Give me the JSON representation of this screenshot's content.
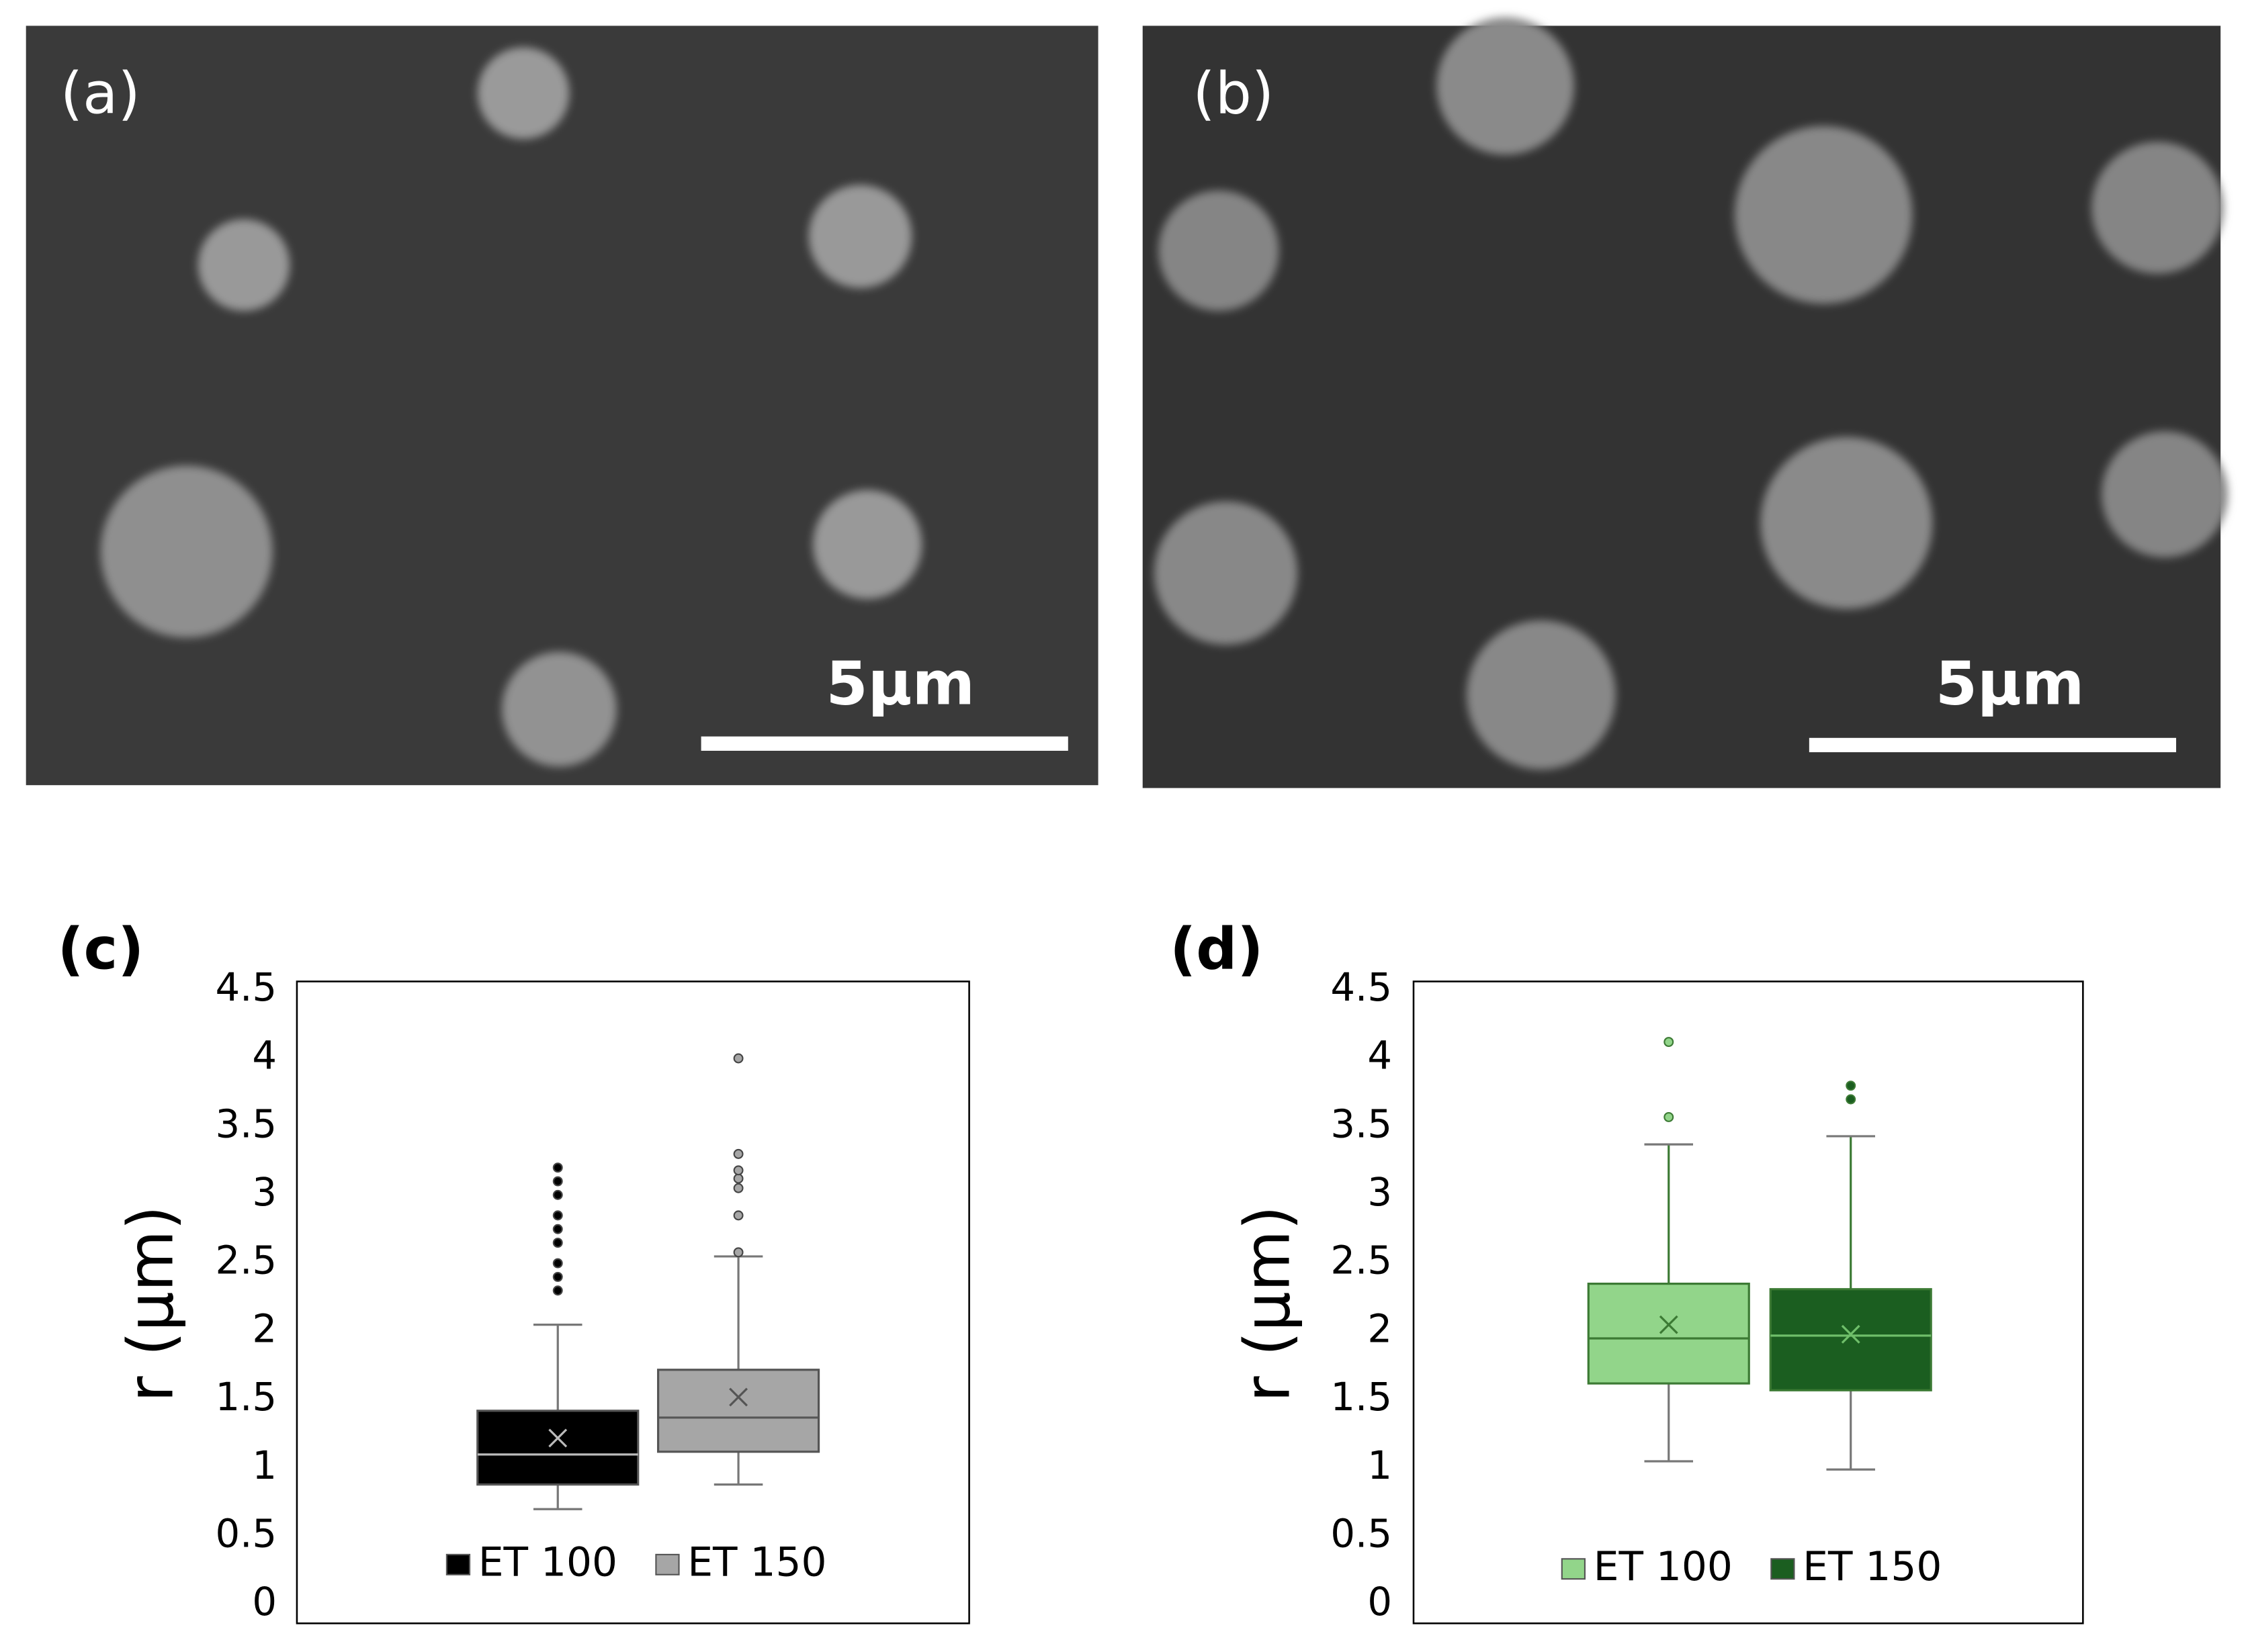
{
  "images": [
    {
      "label": "(a)",
      "scale_bar": "5μm"
    },
    {
      "label": "(b)",
      "scale_bar": "5μm"
    }
  ],
  "chart_data": [
    {
      "type": "box",
      "label": "(c)",
      "y_label": "r (μm)",
      "ylim": [
        0,
        4.5
      ],
      "yticks": [
        0,
        0.5,
        1,
        1.5,
        2,
        2.5,
        3,
        3.5,
        4,
        4.5
      ],
      "series": [
        {
          "name": "ET 100",
          "color": "#000000",
          "min": 0.7,
          "q1": 0.88,
          "median": 1.1,
          "q3": 1.42,
          "max": 2.05,
          "mean": 1.22,
          "outliers": [
            2.3,
            2.4,
            2.5,
            2.65,
            2.75,
            2.85,
            3.0,
            3.1,
            3.2
          ]
        },
        {
          "name": "ET 150",
          "color": "#a6a6a6",
          "min": 0.88,
          "q1": 1.12,
          "median": 1.37,
          "q3": 1.72,
          "max": 2.55,
          "mean": 1.52,
          "outliers": [
            2.58,
            2.85,
            3.05,
            3.12,
            3.18,
            3.3,
            4.0
          ]
        }
      ]
    },
    {
      "type": "box",
      "label": "(d)",
      "y_label": "r (μm)",
      "ylim": [
        0,
        4.5
      ],
      "yticks": [
        0,
        0.5,
        1,
        1.5,
        2,
        2.5,
        3,
        3.5,
        4,
        4.5
      ],
      "series": [
        {
          "name": "ET 100",
          "color": "#92d58a",
          "min": 1.05,
          "q1": 1.62,
          "median": 1.95,
          "q3": 2.35,
          "max": 3.37,
          "mean": 2.05,
          "outliers": [
            3.57,
            4.12
          ]
        },
        {
          "name": "ET 150",
          "color": "#1b5e20",
          "min": 0.99,
          "q1": 1.57,
          "median": 1.97,
          "q3": 2.31,
          "max": 3.43,
          "mean": 1.98,
          "outliers": [
            3.7,
            3.8
          ]
        }
      ]
    }
  ]
}
